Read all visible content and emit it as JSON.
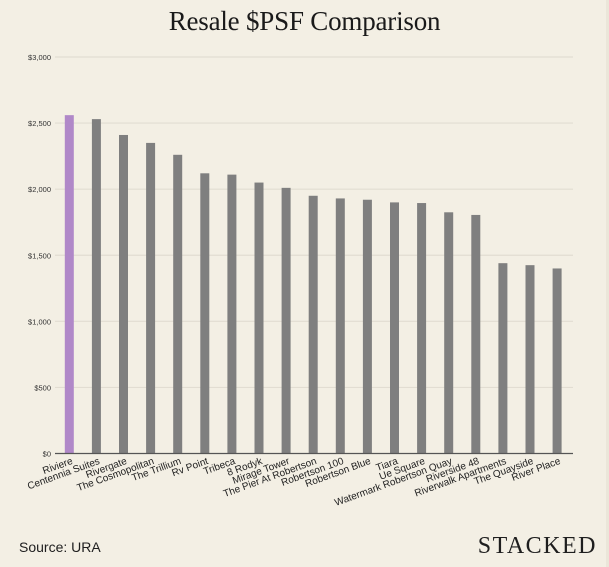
{
  "chart_data": {
    "type": "bar",
    "title": "Resale $PSF Comparison",
    "xlabel": "",
    "ylabel": "",
    "ylim": [
      0,
      3000
    ],
    "yticks": [
      0,
      500,
      1000,
      1500,
      2000,
      2500,
      3000
    ],
    "ytick_labels": [
      "$0",
      "$500",
      "$1,000",
      "$1,500",
      "$2,000",
      "$2,500",
      "$3,000"
    ],
    "grid": true,
    "categories": [
      "Riviere",
      "Centennia Suites",
      "Rivergate",
      "The Cosmopolitan",
      "The Trillium",
      "Rv Point",
      "Tribeca",
      "8 Rodyk",
      "Mirage Tower",
      "The Pier At Robertson",
      "Robertson 100",
      "Robertson Blue",
      "Tiara",
      "Ue Square",
      "Watermark Robertson Quay",
      "Riverside 48",
      "Riverwalk Apartments",
      "The Quayside",
      "River Place"
    ],
    "values": [
      2560,
      2530,
      2410,
      2350,
      2260,
      2120,
      2110,
      2050,
      2010,
      1950,
      1930,
      1920,
      1900,
      1895,
      1825,
      1805,
      1440,
      1425,
      1400
    ],
    "highlight_index": 0,
    "colors": {
      "highlight": "#b088c8",
      "default": "#7f7f7f",
      "grid": "#e2ddd2",
      "axis": "#555555"
    }
  },
  "footer": {
    "source": "Source: URA",
    "brand": "STACKED"
  }
}
